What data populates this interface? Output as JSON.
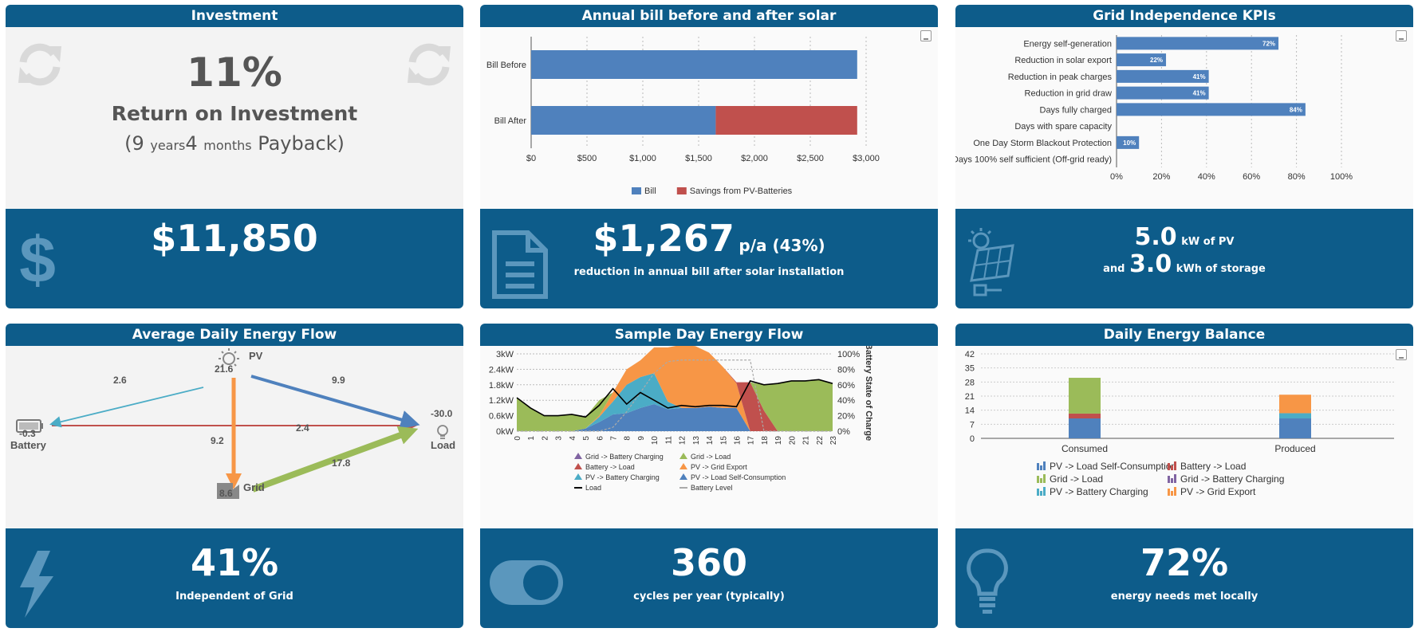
{
  "investment": {
    "title": "Investment",
    "roi": "11%",
    "roi_label": "Return on Investment",
    "payback_open": "(9 ",
    "years_word": "years",
    "months_num": "4",
    "months_word": "months",
    "payback_word": "Payback)",
    "amount": "$11,850"
  },
  "bill": {
    "title": "Annual bill before and after solar",
    "amount": "$1,267",
    "per_annum": "p/a (43%)",
    "caption": "reduction in annual bill after solar installation"
  },
  "kpis": {
    "title": "Grid Independence KPIs",
    "pv": "5.0",
    "pv_unit": "kW of PV",
    "and_word": "and",
    "storage": "3.0",
    "storage_unit": "kWh of storage"
  },
  "flow": {
    "title": "Average Daily Energy Flow",
    "pv_label": "PV",
    "pv_value": "21.6",
    "battery_label": "Battery",
    "battery_value": "-0.3",
    "load_label": "Load",
    "load_value": "-30.0",
    "grid_label": "Grid",
    "grid_value": "8.6",
    "pv_battery": "2.6",
    "pv_load": "9.9",
    "battery_load": "2.4",
    "pv_grid": "9.2",
    "grid_load": "17.8",
    "percent": "41%",
    "caption": "Independent of Grid"
  },
  "sample": {
    "title": "Sample Day Energy Flow",
    "cycles": "360",
    "caption": "cycles per year (typically)"
  },
  "balance": {
    "title": "Daily Energy Balance",
    "percent": "72%",
    "caption": "energy needs met locally"
  },
  "chart_data": [
    {
      "type": "bar",
      "orientation": "horizontal",
      "stacked": true,
      "categories": [
        "Bill Before",
        "Bill After"
      ],
      "series": [
        {
          "name": "Bill",
          "color": "#4f81bd",
          "values": [
            2920,
            1653
          ]
        },
        {
          "name": "Savings from PV-Batteries",
          "color": "#c0504d",
          "values": [
            0,
            1267
          ]
        }
      ],
      "xlim": [
        0,
        3000
      ],
      "xticks": [
        "$0",
        "$500",
        "$1,000",
        "$1,500",
        "$2,000",
        "$2,500",
        "$3,000"
      ],
      "legend": "bottom"
    },
    {
      "type": "bar",
      "orientation": "horizontal",
      "categories": [
        "Energy self-generation",
        "Reduction in solar export",
        "Reduction in peak charges",
        "Reduction in grid draw",
        "Days fully charged",
        "Days with spare capacity",
        "One Day Storm Blackout Protection",
        "Days 100% self sufficient (Off-grid ready)"
      ],
      "values": [
        72,
        22,
        41,
        41,
        84,
        0,
        10,
        0
      ],
      "labels": [
        "72%",
        "22%",
        "41%",
        "41%",
        "84%",
        "",
        "10%",
        ""
      ],
      "xlim": [
        0,
        100
      ],
      "xticks": [
        "0%",
        "20%",
        "40%",
        "60%",
        "80%",
        "100%"
      ],
      "color": "#4f81bd"
    },
    {
      "type": "area",
      "x": [
        0,
        1,
        2,
        3,
        4,
        5,
        6,
        7,
        8,
        9,
        10,
        11,
        12,
        13,
        14,
        15,
        16,
        17,
        18,
        19,
        20,
        21,
        22,
        23
      ],
      "yticks_left": [
        "0kW",
        "0.6kW",
        "1.2kW",
        "1.8kW",
        "2.4kW",
        "3kW"
      ],
      "yticks_right": [
        "0%",
        "20%",
        "40%",
        "60%",
        "80%",
        "100%"
      ],
      "ylabel_right": "Battery State of Charge",
      "ylim": [
        0,
        3
      ],
      "series": [
        {
          "name": "Grid -> Battery Charging",
          "color": "#8064a2"
        },
        {
          "name": "Grid -> Load",
          "color": "#9bbb59"
        },
        {
          "name": "Battery -> Load",
          "color": "#c0504d"
        },
        {
          "name": "PV -> Grid Export",
          "color": "#f79646"
        },
        {
          "name": "PV -> Battery Charging",
          "color": "#4bacc6"
        },
        {
          "name": "PV -> Load Self-Consumption",
          "color": "#4f81bd"
        },
        {
          "name": "Load",
          "color": "#000000",
          "values": [
            1.3,
            0.9,
            0.6,
            0.6,
            0.65,
            0.55,
            1.0,
            1.65,
            1.05,
            1.5,
            1.2,
            0.9,
            1.0,
            0.95,
            1.0,
            1.0,
            0.95,
            1.95,
            1.8,
            1.85,
            1.95,
            1.95,
            2.0,
            1.85
          ]
        },
        {
          "name": "Battery Level",
          "color": "#aaaaaa"
        }
      ],
      "legend": "bottom"
    },
    {
      "type": "bar",
      "stacked": true,
      "categories": [
        "Consumed",
        "Produced"
      ],
      "yticks": [
        "0",
        "7",
        "14",
        "21",
        "28",
        "35",
        "42"
      ],
      "ylim": [
        0,
        42
      ],
      "series": [
        {
          "name": "PV -> Load Self-Consumption",
          "color": "#4f81bd",
          "values": [
            9.9,
            9.9
          ]
        },
        {
          "name": "Battery -> Load",
          "color": "#c0504d",
          "values": [
            2.4,
            0
          ]
        },
        {
          "name": "Grid -> Load",
          "color": "#9bbb59",
          "values": [
            17.8,
            0
          ]
        },
        {
          "name": "Grid -> Battery Charging",
          "color": "#8064a2",
          "values": [
            0,
            0
          ]
        },
        {
          "name": "PV -> Battery Charging",
          "color": "#4bacc6",
          "values": [
            0,
            2.6
          ]
        },
        {
          "name": "PV -> Grid Export",
          "color": "#f79646",
          "values": [
            0,
            9.2
          ]
        }
      ],
      "legend": "bottom"
    }
  ]
}
